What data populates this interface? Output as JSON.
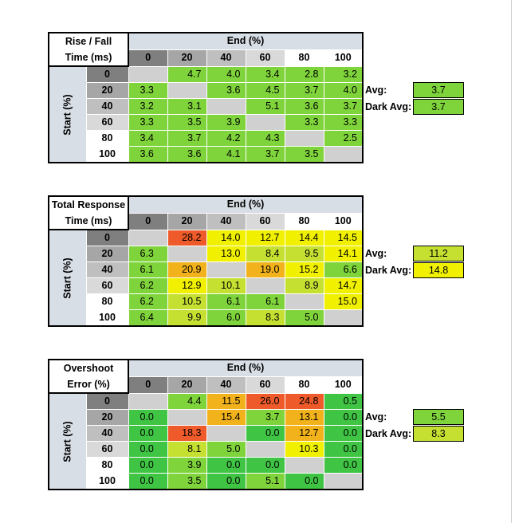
{
  "colors": {
    "header_dark": "#7f7f7f",
    "header_mid": "#a6a6a6",
    "header_light": "#bfbfbf",
    "header_lighter": "#d9d9d9",
    "header_white": "#ffffff",
    "axis_bg": "#d8dee6",
    "empty": "#d0d0d0",
    "green_dark": "#3fc444",
    "green": "#7fd43b",
    "yellow_green": "#c6e032",
    "yellow": "#f0f000",
    "amber": "#f2b21b",
    "orange": "#f2881a",
    "red": "#ee5a29"
  },
  "col_header_levels": [
    "0",
    "20",
    "40",
    "60",
    "80",
    "100"
  ],
  "row_header_levels": [
    "0",
    "20",
    "40",
    "60",
    "80",
    "100"
  ],
  "tables": [
    {
      "title_line1": "Rise / Fall",
      "title_line2": "Time (ms)",
      "end_label": "End (%)",
      "start_label": "Start (%)",
      "columns": [
        "0",
        "20",
        "40",
        "60",
        "80",
        "100"
      ],
      "rows": [
        {
          "label": "0",
          "cells": [
            [
              "",
              "empty"
            ],
            [
              "4.7",
              "green"
            ],
            [
              "4.0",
              "green"
            ],
            [
              "3.4",
              "green"
            ],
            [
              "2.8",
              "green"
            ],
            [
              "3.2",
              "green"
            ]
          ]
        },
        {
          "label": "20",
          "cells": [
            [
              "3.3",
              "green"
            ],
            [
              "",
              "empty"
            ],
            [
              "3.6",
              "green"
            ],
            [
              "4.5",
              "green"
            ],
            [
              "3.7",
              "green"
            ],
            [
              "4.0",
              "green"
            ]
          ]
        },
        {
          "label": "40",
          "cells": [
            [
              "3.2",
              "green"
            ],
            [
              "3.1",
              "green"
            ],
            [
              "",
              "empty"
            ],
            [
              "5.1",
              "green"
            ],
            [
              "3.6",
              "green"
            ],
            [
              "3.7",
              "green"
            ]
          ]
        },
        {
          "label": "60",
          "cells": [
            [
              "3.3",
              "green"
            ],
            [
              "3.5",
              "green"
            ],
            [
              "3.9",
              "green"
            ],
            [
              "",
              "empty"
            ],
            [
              "3.3",
              "green"
            ],
            [
              "3.3",
              "green"
            ]
          ]
        },
        {
          "label": "80",
          "cells": [
            [
              "3.4",
              "green"
            ],
            [
              "3.7",
              "green"
            ],
            [
              "4.2",
              "green"
            ],
            [
              "4.3",
              "green"
            ],
            [
              "",
              "empty"
            ],
            [
              "2.5",
              "green"
            ]
          ]
        },
        {
          "label": "100",
          "cells": [
            [
              "3.6",
              "green"
            ],
            [
              "3.6",
              "green"
            ],
            [
              "4.1",
              "green"
            ],
            [
              "3.7",
              "green"
            ],
            [
              "3.5",
              "green"
            ],
            [
              "",
              "empty"
            ]
          ]
        }
      ],
      "avg_label": "Avg:",
      "avg_value": "3.7",
      "avg_color": "green",
      "dark_avg_label": "Dark Avg:",
      "dark_avg_value": "3.7",
      "dark_avg_color": "green"
    },
    {
      "title_line1": "Total Response",
      "title_line2": "Time (ms)",
      "end_label": "End (%)",
      "start_label": "Start (%)",
      "columns": [
        "0",
        "20",
        "40",
        "60",
        "80",
        "100"
      ],
      "rows": [
        {
          "label": "0",
          "cells": [
            [
              "",
              "empty"
            ],
            [
              "28.2",
              "red"
            ],
            [
              "14.0",
              "yellow"
            ],
            [
              "12.7",
              "yellow"
            ],
            [
              "14.4",
              "yellow"
            ],
            [
              "14.5",
              "yellow"
            ]
          ]
        },
        {
          "label": "20",
          "cells": [
            [
              "6.3",
              "green"
            ],
            [
              "",
              "empty"
            ],
            [
              "13.0",
              "yellow"
            ],
            [
              "8.4",
              "yellow_green"
            ],
            [
              "9.5",
              "yellow_green"
            ],
            [
              "14.1",
              "yellow"
            ]
          ]
        },
        {
          "label": "40",
          "cells": [
            [
              "6.1",
              "green"
            ],
            [
              "20.9",
              "amber"
            ],
            [
              "",
              "empty"
            ],
            [
              "19.0",
              "amber"
            ],
            [
              "15.2",
              "yellow"
            ],
            [
              "6.6",
              "green"
            ]
          ]
        },
        {
          "label": "60",
          "cells": [
            [
              "6.2",
              "green"
            ],
            [
              "12.9",
              "yellow"
            ],
            [
              "10.1",
              "yellow_green"
            ],
            [
              "",
              "empty"
            ],
            [
              "8.9",
              "yellow_green"
            ],
            [
              "14.7",
              "yellow"
            ]
          ]
        },
        {
          "label": "80",
          "cells": [
            [
              "6.2",
              "green"
            ],
            [
              "10.5",
              "yellow_green"
            ],
            [
              "6.1",
              "green"
            ],
            [
              "6.1",
              "green"
            ],
            [
              "",
              "empty"
            ],
            [
              "15.0",
              "yellow"
            ]
          ]
        },
        {
          "label": "100",
          "cells": [
            [
              "6.4",
              "green"
            ],
            [
              "9.9",
              "yellow_green"
            ],
            [
              "6.0",
              "green"
            ],
            [
              "8.3",
              "yellow_green"
            ],
            [
              "5.0",
              "green"
            ],
            [
              "",
              "empty"
            ]
          ]
        }
      ],
      "avg_label": "Avg:",
      "avg_value": "11.2",
      "avg_color": "yellow_green",
      "dark_avg_label": "Dark Avg:",
      "dark_avg_value": "14.8",
      "dark_avg_color": "yellow"
    },
    {
      "title_line1": "Overshoot",
      "title_line2": "Error (%)",
      "end_label": "End (%)",
      "start_label": "Start (%)",
      "columns": [
        "0",
        "20",
        "40",
        "60",
        "80",
        "100"
      ],
      "rows": [
        {
          "label": "0",
          "cells": [
            [
              "",
              "empty"
            ],
            [
              "4.4",
              "green"
            ],
            [
              "11.5",
              "amber"
            ],
            [
              "26.0",
              "red"
            ],
            [
              "24.8",
              "red"
            ],
            [
              "0.5",
              "green_dark"
            ]
          ]
        },
        {
          "label": "20",
          "cells": [
            [
              "0.0",
              "green_dark"
            ],
            [
              "",
              "empty"
            ],
            [
              "15.4",
              "amber"
            ],
            [
              "3.7",
              "green"
            ],
            [
              "13.1",
              "amber"
            ],
            [
              "0.0",
              "green_dark"
            ]
          ]
        },
        {
          "label": "40",
          "cells": [
            [
              "0.0",
              "green_dark"
            ],
            [
              "18.3",
              "red"
            ],
            [
              "",
              "empty"
            ],
            [
              "0.0",
              "green_dark"
            ],
            [
              "12.7",
              "amber"
            ],
            [
              "0.0",
              "green_dark"
            ]
          ]
        },
        {
          "label": "60",
          "cells": [
            [
              "0.0",
              "green_dark"
            ],
            [
              "8.1",
              "yellow_green"
            ],
            [
              "5.0",
              "green"
            ],
            [
              "",
              "empty"
            ],
            [
              "10.3",
              "yellow"
            ],
            [
              "0.0",
              "green_dark"
            ]
          ]
        },
        {
          "label": "80",
          "cells": [
            [
              "0.0",
              "green_dark"
            ],
            [
              "3.9",
              "green"
            ],
            [
              "0.0",
              "green_dark"
            ],
            [
              "0.0",
              "green_dark"
            ],
            [
              "",
              "empty"
            ],
            [
              "0.0",
              "green_dark"
            ]
          ]
        },
        {
          "label": "100",
          "cells": [
            [
              "0.0",
              "green_dark"
            ],
            [
              "3.5",
              "green"
            ],
            [
              "0.0",
              "green_dark"
            ],
            [
              "5.1",
              "green"
            ],
            [
              "0.0",
              "green_dark"
            ],
            [
              "",
              "empty"
            ]
          ]
        }
      ],
      "avg_label": "Avg:",
      "avg_value": "5.5",
      "avg_color": "green",
      "dark_avg_label": "Dark Avg:",
      "dark_avg_value": "8.3",
      "dark_avg_color": "yellow_green"
    }
  ]
}
